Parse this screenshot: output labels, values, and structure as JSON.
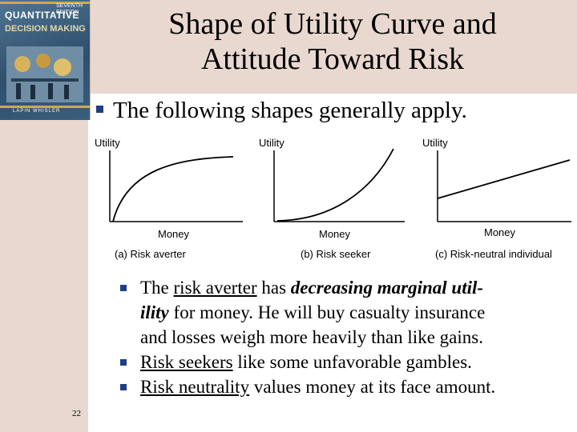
{
  "book_cover": {
    "brand_line1": "QUANTITATIVE",
    "brand_line2": "DECISION MAKING",
    "edition_line1": "SEVENTH",
    "edition_line2": "EDITION",
    "authors": "LAPIN  WHISLER"
  },
  "title": {
    "line1": "Shape of Utility Curve and",
    "line2": "Attitude Toward Risk"
  },
  "main_bullet": "The following shapes generally apply.",
  "figure": {
    "panels": [
      {
        "y_label": "Utility",
        "x_label": "Money",
        "caption": "(a) Risk averter",
        "curve": "concave"
      },
      {
        "y_label": "Utility",
        "x_label": "Money",
        "caption": "(b) Risk seeker",
        "curve": "convex"
      },
      {
        "y_label": "Utility",
        "x_label": "Money",
        "caption": "(c) Risk-neutral individual",
        "curve": "linear"
      }
    ]
  },
  "bullets": {
    "b1": {
      "term": "risk averter",
      "pre": "The ",
      "mid": " has ",
      "emph_line1": "decreasing marginal util-",
      "emph_line2": "ility",
      "rest_line2": " for money.  He will buy casualty insurance",
      "line3": "and losses weigh more heavily than like gains."
    },
    "b2": {
      "term": "Risk seekers",
      "rest": " like some unfavorable gambles."
    },
    "b3": {
      "term": "Risk neutrality",
      "rest": " values money at its face amount."
    }
  },
  "slide_number": "22",
  "colors": {
    "header_band": "#e8d8cf",
    "bullet_square": "#1c3f86",
    "text": "#000000"
  }
}
